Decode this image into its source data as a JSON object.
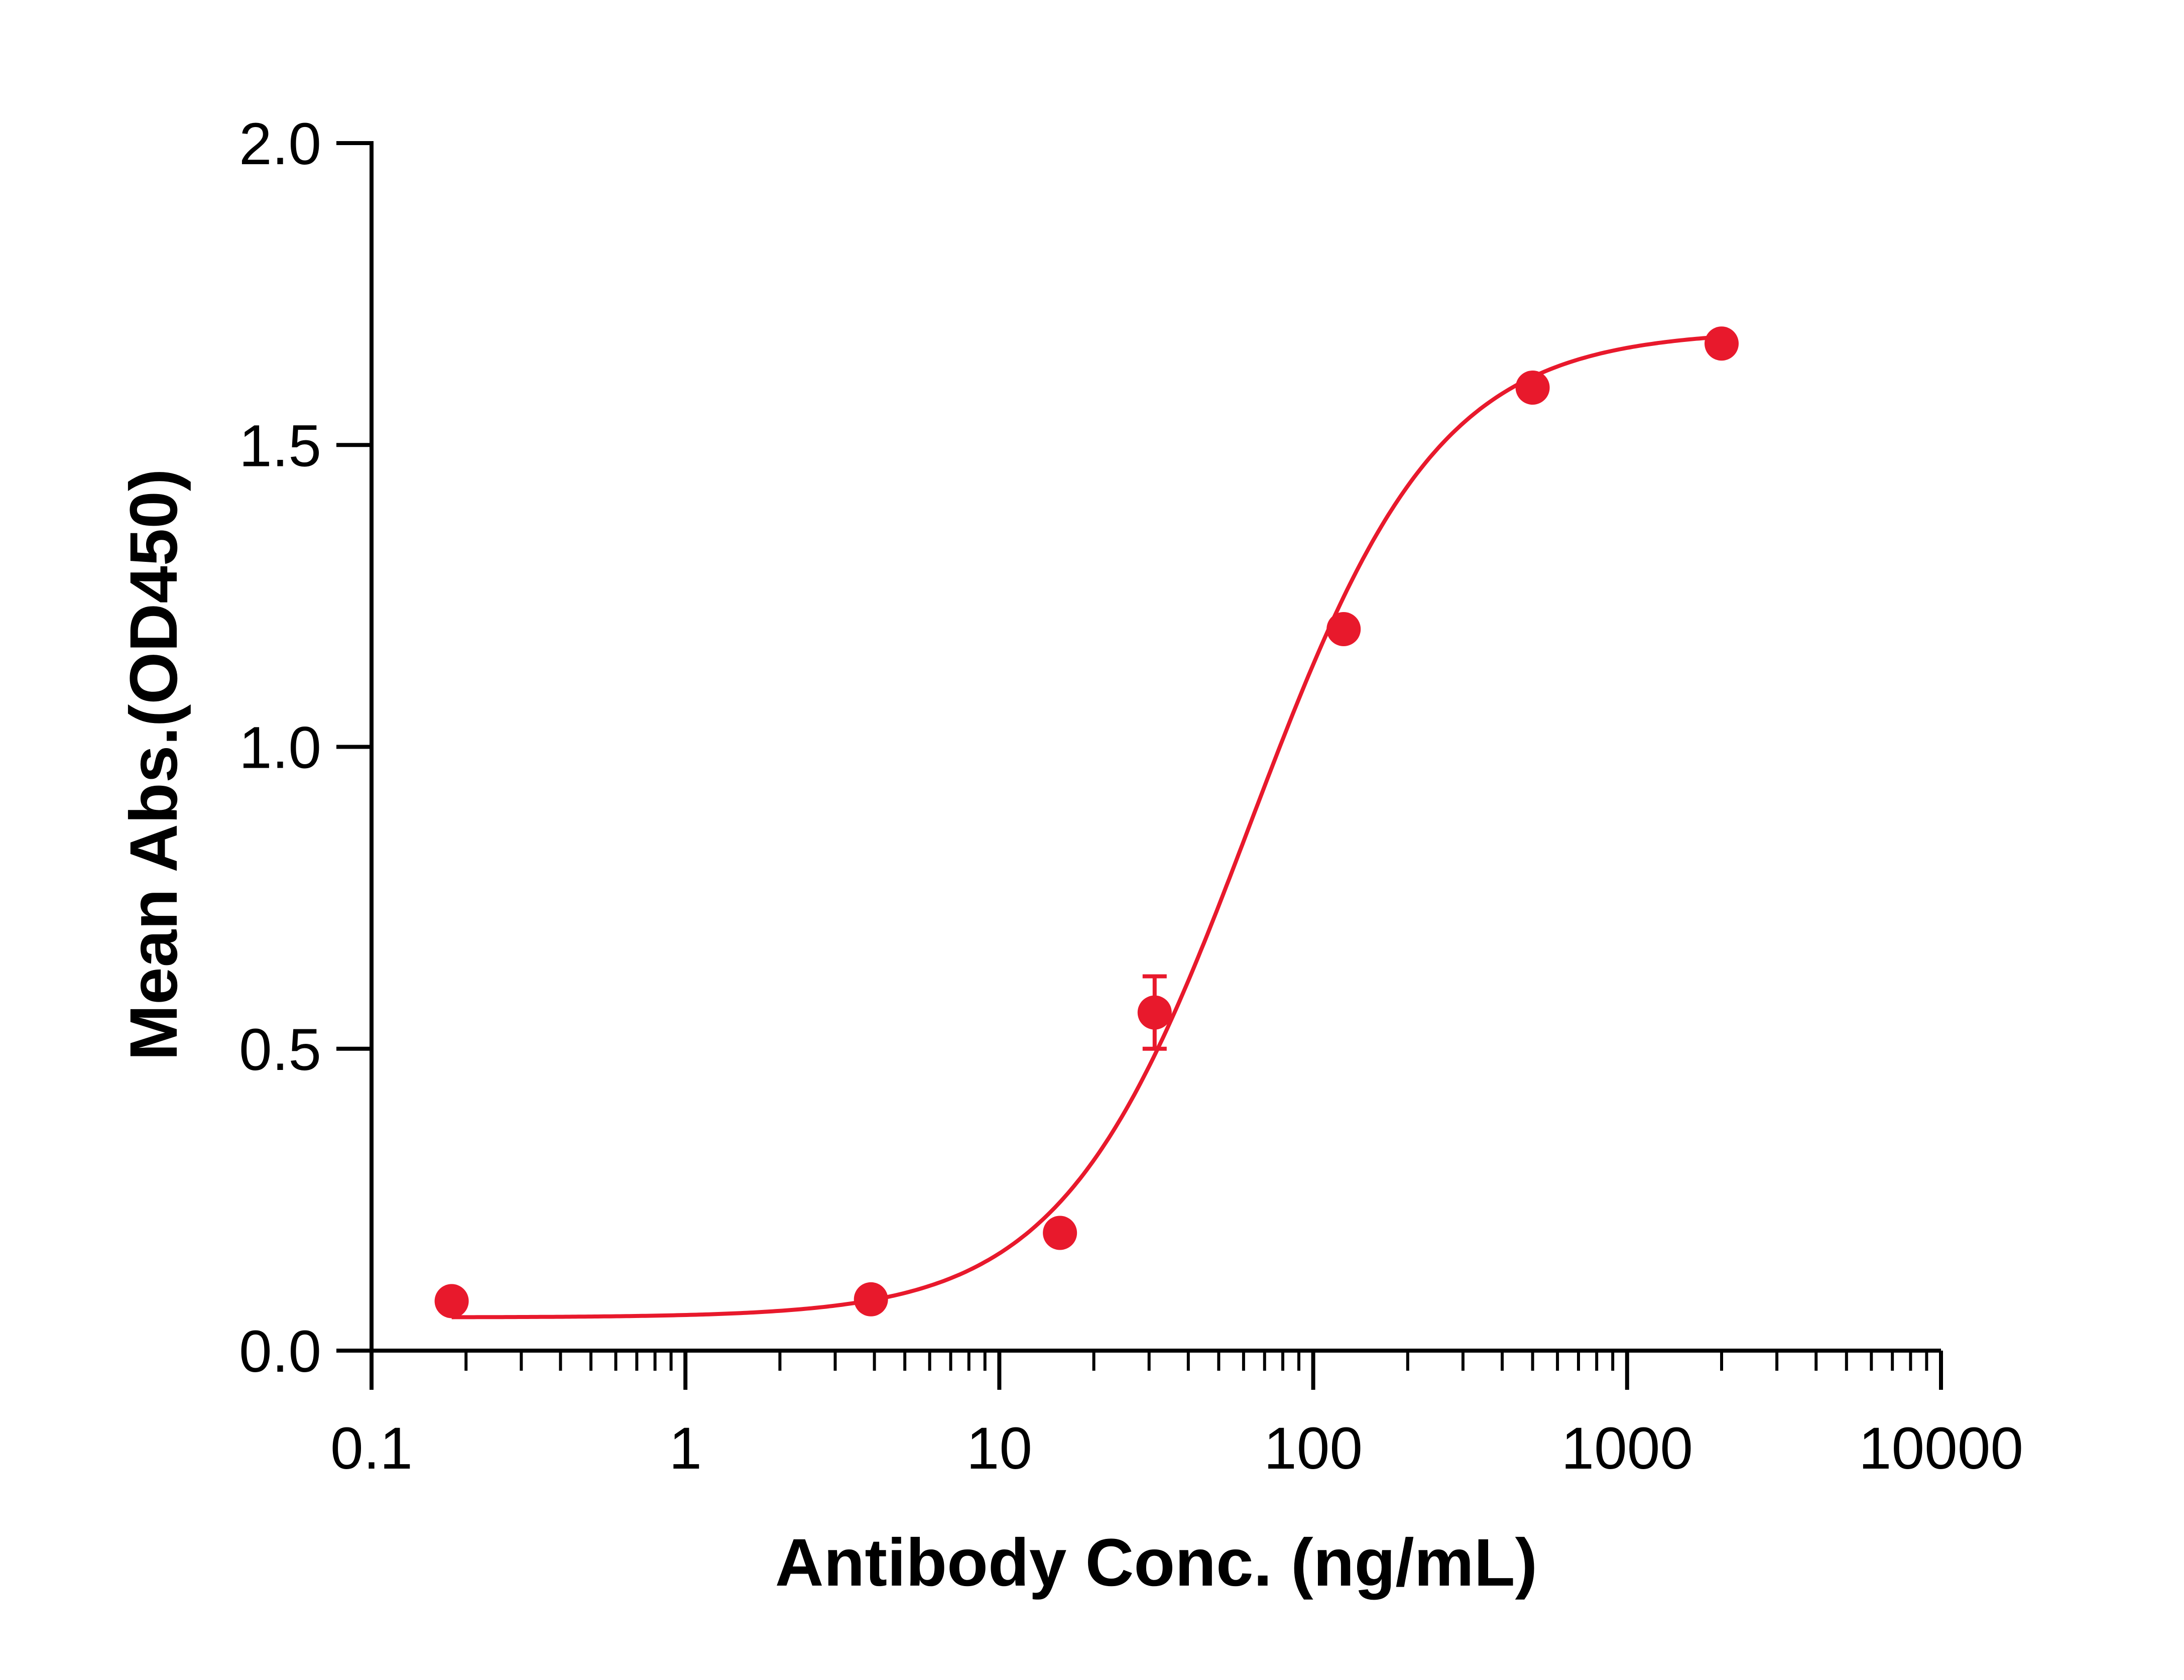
{
  "chart_data": {
    "type": "scatter",
    "title": "",
    "xlabel": "Antibody Conc. (ng/mL)",
    "ylabel": "Mean Abs.(OD450)",
    "x_scale": "log",
    "xlim": [
      0.1,
      10000
    ],
    "ylim": [
      0,
      2.0
    ],
    "x_ticks": [
      0.1,
      1,
      10,
      100,
      1000,
      10000
    ],
    "x_tick_labels": [
      "0.1",
      "1",
      "10",
      "100",
      "1000",
      "10000"
    ],
    "y_ticks": [
      0,
      0.5,
      1.0,
      1.5,
      2.0
    ],
    "y_tick_labels": [
      "0.0",
      "0.5",
      "1.0",
      "1.5",
      "2.0"
    ],
    "grid": false,
    "color": "#E8192C",
    "series": [
      {
        "x": [
          0.18,
          3.9,
          15.6,
          31.25,
          125,
          500,
          2000
        ],
        "y": [
          0.082,
          0.085,
          0.195,
          0.56,
          1.195,
          1.595,
          1.668
        ],
        "y_err": [
          0,
          0,
          0,
          0.06,
          0,
          0,
          0
        ]
      }
    ],
    "fit_curve": {
      "model": "4PL",
      "bottom": 0.055,
      "top": 1.69,
      "ec50": 63,
      "hill": 1.45
    }
  }
}
